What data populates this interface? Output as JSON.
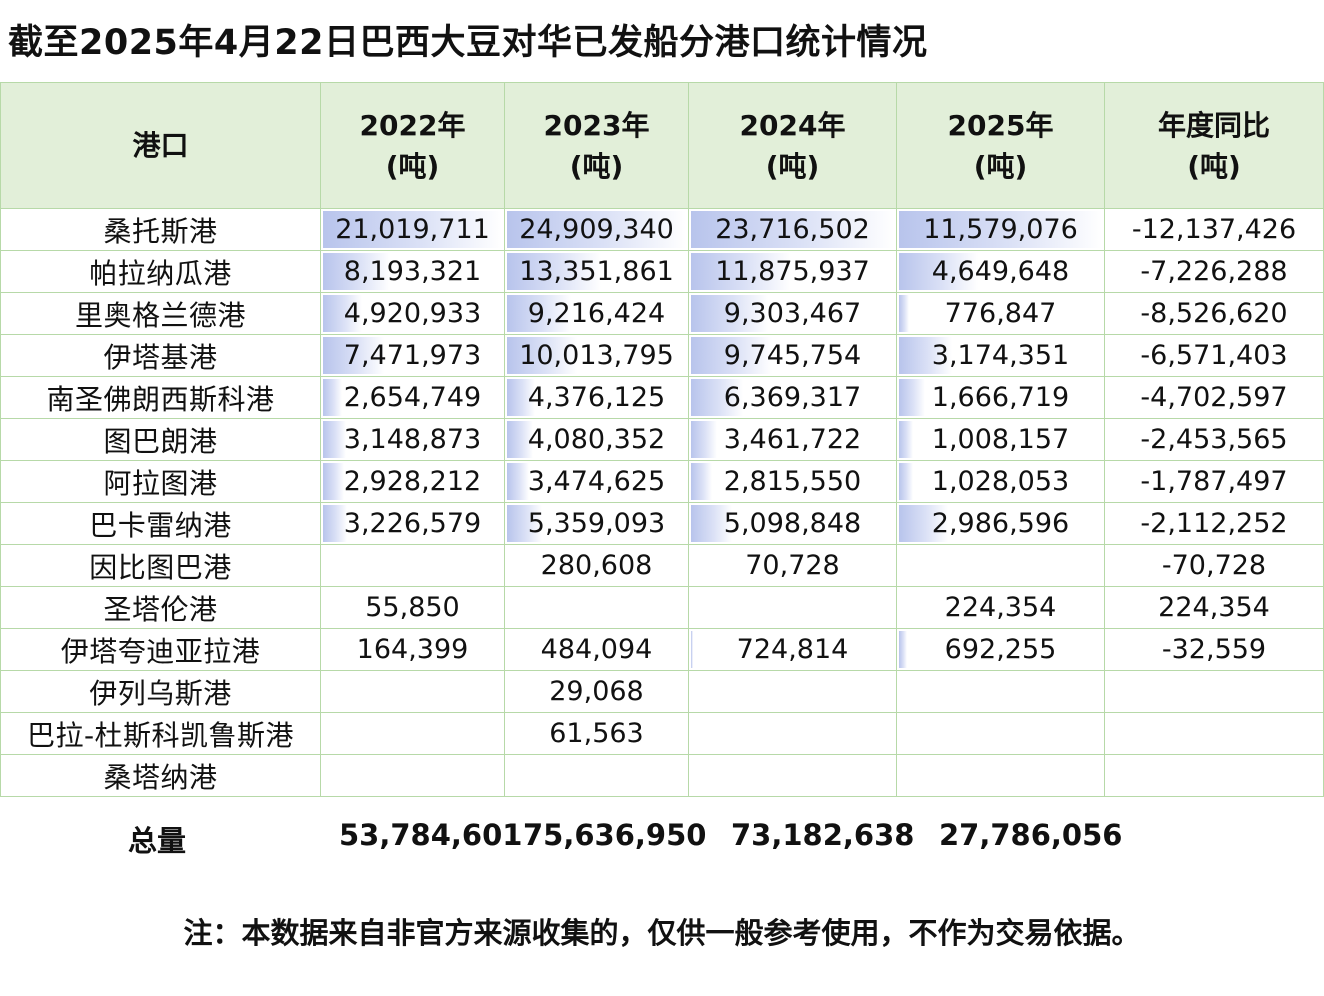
{
  "title": "截至2025年4月22日巴西大豆对华已发船分港口统计情况",
  "chart_data": {
    "type": "table",
    "headers": [
      {
        "line1": "港口",
        "line2": ""
      },
      {
        "line1": "2022年",
        "line2": "(吨)"
      },
      {
        "line1": "2023年",
        "line2": "(吨)"
      },
      {
        "line1": "2024年",
        "line2": "(吨)"
      },
      {
        "line1": "2025年",
        "line2": "(吨)"
      },
      {
        "line1": "年度同比",
        "line2": "(吨)"
      }
    ],
    "rows": [
      {
        "port": "桑托斯港",
        "y2022": "21,019,711",
        "y2023": "24,909,340",
        "y2024": "23,716,502",
        "y2025": "11,579,076",
        "yoy": "-12,137,426"
      },
      {
        "port": "帕拉纳瓜港",
        "y2022": "8,193,321",
        "y2023": "13,351,861",
        "y2024": "11,875,937",
        "y2025": "4,649,648",
        "yoy": "-7,226,288"
      },
      {
        "port": "里奥格兰德港",
        "y2022": "4,920,933",
        "y2023": "9,216,424",
        "y2024": "9,303,467",
        "y2025": "776,847",
        "yoy": "-8,526,620"
      },
      {
        "port": "伊塔基港",
        "y2022": "7,471,973",
        "y2023": "10,013,795",
        "y2024": "9,745,754",
        "y2025": "3,174,351",
        "yoy": "-6,571,403"
      },
      {
        "port": "南圣佛朗西斯科港",
        "y2022": "2,654,749",
        "y2023": "4,376,125",
        "y2024": "6,369,317",
        "y2025": "1,666,719",
        "yoy": "-4,702,597"
      },
      {
        "port": "图巴朗港",
        "y2022": "3,148,873",
        "y2023": "4,080,352",
        "y2024": "3,461,722",
        "y2025": "1,008,157",
        "yoy": "-2,453,565"
      },
      {
        "port": "阿拉图港",
        "y2022": "2,928,212",
        "y2023": "3,474,625",
        "y2024": "2,815,550",
        "y2025": "1,028,053",
        "yoy": "-1,787,497"
      },
      {
        "port": "巴卡雷纳港",
        "y2022": "3,226,579",
        "y2023": "5,359,093",
        "y2024": "5,098,848",
        "y2025": "2,986,596",
        "yoy": "-2,112,252"
      },
      {
        "port": "因比图巴港",
        "y2022": "",
        "y2023": "280,608",
        "y2024": "70,728",
        "y2025": "",
        "yoy": "-70,728"
      },
      {
        "port": "圣塔伦港",
        "y2022": "55,850",
        "y2023": "",
        "y2024": "",
        "y2025": "224,354",
        "yoy": "224,354"
      },
      {
        "port": "伊塔夸迪亚拉港",
        "y2022": "164,399",
        "y2023": "484,094",
        "y2024": "724,814",
        "y2025": "692,255",
        "yoy": "-32,559"
      },
      {
        "port": "伊列乌斯港",
        "y2022": "",
        "y2023": "29,068",
        "y2024": "",
        "y2025": "",
        "yoy": ""
      },
      {
        "port": "巴拉-杜斯科凯鲁斯港",
        "y2022": "",
        "y2023": "61,563",
        "y2024": "",
        "y2025": "",
        "yoy": ""
      },
      {
        "port": "桑塔纳港",
        "y2022": "",
        "y2023": "",
        "y2024": "",
        "y2025": "",
        "yoy": ""
      }
    ],
    "totals": {
      "label": "总量",
      "y2022": "53,784,601",
      "y2023": "75,636,950",
      "y2024": "73,182,638",
      "y2025": "27,786,056"
    },
    "bar_color": "#b8c4ec",
    "header_fill": "#e2efd9",
    "grid_color": "#b7d9a8"
  },
  "note": "注：本数据来自非官方来源收集的，仅供一般参考使用，不作为交易依据。"
}
